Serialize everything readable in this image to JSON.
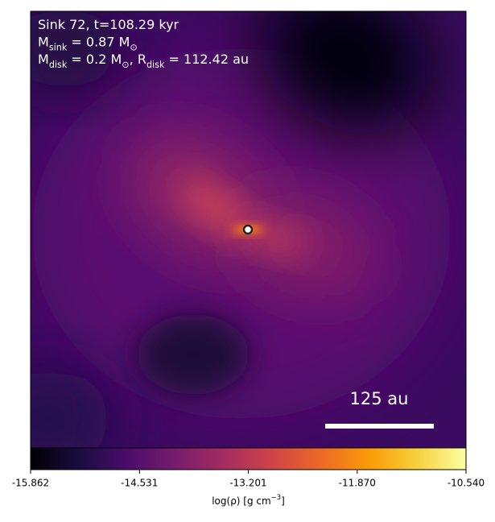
{
  "chart_data": {
    "type": "heatmap",
    "annotations": [
      [
        {
          "t": "Sink 72, t=108.29 kyr"
        }
      ],
      [
        {
          "t": "M"
        },
        {
          "sub": "sink"
        },
        {
          "t": " = 0.87 M"
        },
        {
          "sub": "⊙"
        }
      ],
      [
        {
          "t": "M"
        },
        {
          "sub": "disk"
        },
        {
          "t": " = 0.2 M"
        },
        {
          "sub": "⊙"
        },
        {
          "t": ", R"
        },
        {
          "sub": "disk"
        },
        {
          "t": " = 112.42 au"
        }
      ]
    ],
    "scale_bar_label": "125 au",
    "colorbar": {
      "colormap": [
        "#000004",
        "#1b0c41",
        "#4a0c6b",
        "#781c6d",
        "#a52c60",
        "#cf4446",
        "#ed6925",
        "#fb9b06",
        "#f7d13d",
        "#fcffa4"
      ],
      "xlim": [
        -15.862,
        -10.54
      ],
      "xticks": [
        -15.862,
        -14.531,
        -13.201,
        {
          "value": -11.87,
          "label": "-11.870"
        },
        {
          "value": -10.54,
          "label": "-10.540"
        }
      ],
      "xlabel": [
        {
          "t": "log(ρ) [g cm"
        },
        {
          "sup": "−3"
        },
        {
          "t": "]"
        }
      ]
    }
  }
}
